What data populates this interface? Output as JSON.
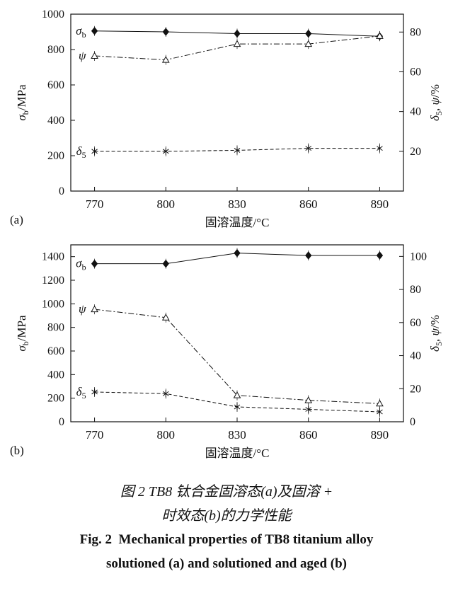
{
  "figure": {
    "captions": {
      "cn_line1": "图 2  TB8 钛合金固溶态(a)及固溶 +",
      "cn_line2": "时效态(b)的力学性能",
      "en_line1": "Fig. 2  Mechanical properties of TB8 titanium alloy",
      "en_line2": "solutioned (a) and solutioned and aged (b)"
    }
  },
  "chart_data": [
    {
      "type": "line",
      "panel_label": "(a)",
      "xlabel": "固溶温度/°C",
      "x": [
        770,
        800,
        830,
        860,
        890
      ],
      "xlim": [
        760,
        900
      ],
      "xticks": [
        770,
        800,
        830,
        860,
        890
      ],
      "grid": false,
      "legend": "in-plot series labels near first points",
      "left_axis": {
        "label_parts": [
          {
            "text": "σ",
            "italic": true
          },
          {
            "text": "b",
            "sub": true
          },
          {
            "text": "/MPa"
          }
        ],
        "lim": [
          0,
          1000
        ],
        "ticks": [
          0,
          200,
          400,
          600,
          800,
          1000
        ]
      },
      "right_axis": {
        "label_parts": [
          {
            "text": "δ",
            "italic": true
          },
          {
            "text": "5",
            "sub": true
          },
          {
            "text": ", "
          },
          {
            "text": "ψ",
            "italic": true
          },
          {
            "text": "/%"
          }
        ],
        "lim": [
          0,
          89
        ],
        "ticks": [
          20,
          40,
          60,
          80
        ]
      },
      "series": [
        {
          "name": "sigma-b",
          "axis": "left",
          "unit": "MPa",
          "marker": "diamond",
          "line": "solid",
          "label_parts": [
            {
              "text": "σ",
              "italic": true
            },
            {
              "text": "b",
              "sub": true
            }
          ],
          "values": [
            905,
            900,
            890,
            890,
            875
          ]
        },
        {
          "name": "psi",
          "axis": "right",
          "unit": "%",
          "marker": "triangle",
          "line": "dashdot",
          "label_parts": [
            {
              "text": "ψ",
              "italic": true
            }
          ],
          "values": [
            68,
            66,
            74,
            74,
            78
          ]
        },
        {
          "name": "delta-5",
          "axis": "right",
          "unit": "%",
          "marker": "asterisk",
          "line": "dashed",
          "label_parts": [
            {
              "text": "δ",
              "italic": true
            },
            {
              "text": "5",
              "sub": true
            }
          ],
          "values": [
            20,
            20,
            20.5,
            21.5,
            21.5
          ]
        }
      ]
    },
    {
      "type": "line",
      "panel_label": "(b)",
      "xlabel": "固溶温度/°C",
      "x": [
        770,
        800,
        830,
        860,
        890
      ],
      "xlim": [
        760,
        900
      ],
      "xticks": [
        770,
        800,
        830,
        860,
        890
      ],
      "grid": false,
      "legend": "in-plot series labels near first points",
      "left_axis": {
        "label_parts": [
          {
            "text": "σ",
            "italic": true
          },
          {
            "text": "b",
            "sub": true
          },
          {
            "text": "/MPa"
          }
        ],
        "lim": [
          0,
          1500
        ],
        "ticks": [
          0,
          200,
          400,
          600,
          800,
          1000,
          1200,
          1400
        ]
      },
      "right_axis": {
        "label_parts": [
          {
            "text": "δ",
            "italic": true
          },
          {
            "text": "5",
            "sub": true
          },
          {
            "text": ", "
          },
          {
            "text": "ψ",
            "italic": true
          },
          {
            "text": "/%"
          }
        ],
        "lim": [
          0,
          107
        ],
        "ticks": [
          0,
          20,
          40,
          60,
          80,
          100
        ]
      },
      "series": [
        {
          "name": "sigma-b",
          "axis": "left",
          "unit": "MPa",
          "marker": "diamond",
          "line": "solid",
          "label_parts": [
            {
              "text": "σ",
              "italic": true
            },
            {
              "text": "b",
              "sub": true
            }
          ],
          "values": [
            1340,
            1340,
            1430,
            1410,
            1410
          ]
        },
        {
          "name": "psi",
          "axis": "right",
          "unit": "%",
          "marker": "triangle",
          "line": "dashdot",
          "label_parts": [
            {
              "text": "ψ",
              "italic": true
            }
          ],
          "values": [
            68,
            63,
            16,
            13,
            11
          ]
        },
        {
          "name": "delta-5",
          "axis": "right",
          "unit": "%",
          "marker": "asterisk",
          "line": "dashed",
          "label_parts": [
            {
              "text": "δ",
              "italic": true
            },
            {
              "text": "5",
              "sub": true
            }
          ],
          "values": [
            18,
            17,
            9,
            7.5,
            6
          ]
        }
      ]
    }
  ]
}
